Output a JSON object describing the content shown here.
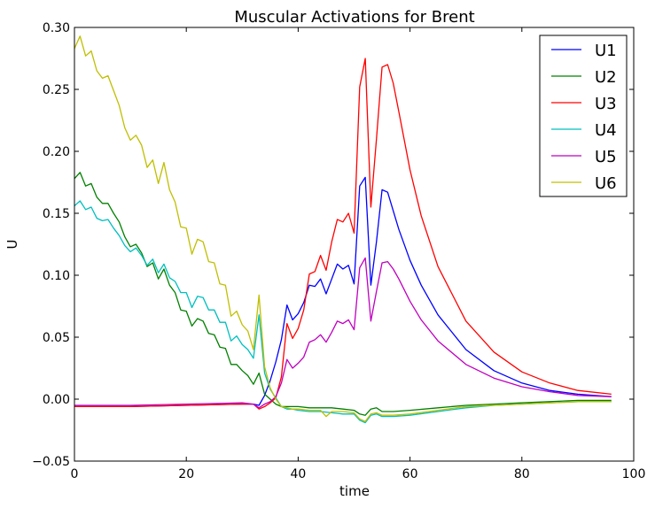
{
  "chart_data": {
    "type": "line",
    "title": "Muscular Activations for Brent",
    "xlabel": "time",
    "ylabel": "U",
    "xlim": [
      0,
      100
    ],
    "ylim": [
      -0.05,
      0.3
    ],
    "xticks": [
      0,
      20,
      40,
      60,
      80,
      100
    ],
    "xtick_labels": [
      "0",
      "20",
      "40",
      "60",
      "80",
      "100"
    ],
    "yticks": [
      -0.05,
      0.0,
      0.05,
      0.1,
      0.15,
      0.2,
      0.25,
      0.3
    ],
    "ytick_labels": [
      "−0.05",
      "0.00",
      "0.05",
      "0.10",
      "0.15",
      "0.20",
      "0.25",
      "0.30"
    ],
    "grid": false,
    "legend_position": "top-right",
    "series": [
      {
        "name": "U1",
        "color": "#0000ff",
        "points": [
          [
            0,
            -0.006
          ],
          [
            10,
            -0.006
          ],
          [
            20,
            -0.005
          ],
          [
            30,
            -0.004
          ],
          [
            32,
            -0.004
          ],
          [
            33,
            -0.005
          ],
          [
            34,
            0.003
          ],
          [
            35,
            0.015
          ],
          [
            36,
            0.03
          ],
          [
            37,
            0.048
          ],
          [
            38,
            0.076
          ],
          [
            39,
            0.064
          ],
          [
            40,
            0.069
          ],
          [
            41,
            0.078
          ],
          [
            42,
            0.092
          ],
          [
            43,
            0.091
          ],
          [
            44,
            0.097
          ],
          [
            45,
            0.085
          ],
          [
            46,
            0.097
          ],
          [
            47,
            0.109
          ],
          [
            48,
            0.105
          ],
          [
            49,
            0.108
          ],
          [
            50,
            0.093
          ],
          [
            51,
            0.172
          ],
          [
            52,
            0.179
          ],
          [
            53,
            0.092
          ],
          [
            54,
            0.127
          ],
          [
            55,
            0.169
          ],
          [
            56,
            0.167
          ],
          [
            57,
            0.152
          ],
          [
            58,
            0.137
          ],
          [
            60,
            0.112
          ],
          [
            62,
            0.092
          ],
          [
            65,
            0.068
          ],
          [
            70,
            0.04
          ],
          [
            75,
            0.023
          ],
          [
            80,
            0.013
          ],
          [
            85,
            0.007
          ],
          [
            90,
            0.004
          ],
          [
            96,
            0.002
          ]
        ]
      },
      {
        "name": "U2",
        "color": "#008000",
        "points": [
          [
            0,
            0.178
          ],
          [
            1,
            0.183
          ],
          [
            2,
            0.172
          ],
          [
            3,
            0.174
          ],
          [
            4,
            0.163
          ],
          [
            5,
            0.158
          ],
          [
            6,
            0.158
          ],
          [
            7,
            0.15
          ],
          [
            8,
            0.143
          ],
          [
            9,
            0.131
          ],
          [
            10,
            0.123
          ],
          [
            11,
            0.125
          ],
          [
            12,
            0.118
          ],
          [
            13,
            0.107
          ],
          [
            14,
            0.11
          ],
          [
            15,
            0.097
          ],
          [
            16,
            0.105
          ],
          [
            17,
            0.092
          ],
          [
            18,
            0.086
          ],
          [
            19,
            0.072
          ],
          [
            20,
            0.071
          ],
          [
            21,
            0.059
          ],
          [
            22,
            0.065
          ],
          [
            23,
            0.063
          ],
          [
            24,
            0.053
          ],
          [
            25,
            0.052
          ],
          [
            26,
            0.042
          ],
          [
            27,
            0.041
          ],
          [
            28,
            0.028
          ],
          [
            29,
            0.028
          ],
          [
            30,
            0.023
          ],
          [
            31,
            0.019
          ],
          [
            32,
            0.012
          ],
          [
            33,
            0.021
          ],
          [
            34,
            0.004
          ],
          [
            35,
            0.0
          ],
          [
            36,
            -0.004
          ],
          [
            37,
            -0.006
          ],
          [
            38,
            -0.006
          ],
          [
            40,
            -0.006
          ],
          [
            42,
            -0.007
          ],
          [
            44,
            -0.007
          ],
          [
            46,
            -0.007
          ],
          [
            48,
            -0.008
          ],
          [
            50,
            -0.009
          ],
          [
            51,
            -0.012
          ],
          [
            52,
            -0.013
          ],
          [
            53,
            -0.008
          ],
          [
            54,
            -0.007
          ],
          [
            55,
            -0.01
          ],
          [
            57,
            -0.01
          ],
          [
            60,
            -0.009
          ],
          [
            65,
            -0.007
          ],
          [
            70,
            -0.005
          ],
          [
            75,
            -0.004
          ],
          [
            80,
            -0.003
          ],
          [
            85,
            -0.002
          ],
          [
            90,
            -0.001
          ],
          [
            96,
            -0.001
          ]
        ]
      },
      {
        "name": "U3",
        "color": "#ff0000",
        "points": [
          [
            0,
            -0.006
          ],
          [
            10,
            -0.006
          ],
          [
            20,
            -0.005
          ],
          [
            30,
            -0.004
          ],
          [
            32,
            -0.004
          ],
          [
            33,
            -0.008
          ],
          [
            34,
            -0.006
          ],
          [
            35,
            -0.003
          ],
          [
            36,
            0.001
          ],
          [
            37,
            0.018
          ],
          [
            38,
            0.061
          ],
          [
            39,
            0.049
          ],
          [
            40,
            0.057
          ],
          [
            41,
            0.072
          ],
          [
            42,
            0.101
          ],
          [
            43,
            0.103
          ],
          [
            44,
            0.116
          ],
          [
            45,
            0.104
          ],
          [
            46,
            0.127
          ],
          [
            47,
            0.145
          ],
          [
            48,
            0.143
          ],
          [
            49,
            0.15
          ],
          [
            50,
            0.134
          ],
          [
            51,
            0.252
          ],
          [
            52,
            0.275
          ],
          [
            53,
            0.155
          ],
          [
            54,
            0.21
          ],
          [
            55,
            0.268
          ],
          [
            56,
            0.27
          ],
          [
            57,
            0.255
          ],
          [
            58,
            0.232
          ],
          [
            60,
            0.185
          ],
          [
            62,
            0.148
          ],
          [
            65,
            0.107
          ],
          [
            70,
            0.063
          ],
          [
            75,
            0.038
          ],
          [
            80,
            0.022
          ],
          [
            85,
            0.013
          ],
          [
            90,
            0.007
          ],
          [
            96,
            0.004
          ]
        ]
      },
      {
        "name": "U4",
        "color": "#00bfbf",
        "points": [
          [
            0,
            0.156
          ],
          [
            1,
            0.16
          ],
          [
            2,
            0.153
          ],
          [
            3,
            0.155
          ],
          [
            4,
            0.146
          ],
          [
            5,
            0.144
          ],
          [
            6,
            0.145
          ],
          [
            7,
            0.138
          ],
          [
            8,
            0.132
          ],
          [
            9,
            0.124
          ],
          [
            10,
            0.119
          ],
          [
            11,
            0.122
          ],
          [
            12,
            0.116
          ],
          [
            13,
            0.108
          ],
          [
            14,
            0.113
          ],
          [
            15,
            0.102
          ],
          [
            16,
            0.109
          ],
          [
            17,
            0.098
          ],
          [
            18,
            0.095
          ],
          [
            19,
            0.086
          ],
          [
            20,
            0.086
          ],
          [
            21,
            0.074
          ],
          [
            22,
            0.083
          ],
          [
            23,
            0.082
          ],
          [
            24,
            0.072
          ],
          [
            25,
            0.072
          ],
          [
            26,
            0.062
          ],
          [
            27,
            0.062
          ],
          [
            28,
            0.047
          ],
          [
            29,
            0.051
          ],
          [
            30,
            0.044
          ],
          [
            31,
            0.04
          ],
          [
            32,
            0.033
          ],
          [
            33,
            0.068
          ],
          [
            34,
            0.021
          ],
          [
            35,
            0.008
          ],
          [
            36,
            0.001
          ],
          [
            37,
            -0.006
          ],
          [
            38,
            -0.008
          ],
          [
            39,
            -0.008
          ],
          [
            40,
            -0.009
          ],
          [
            42,
            -0.01
          ],
          [
            44,
            -0.01
          ],
          [
            46,
            -0.011
          ],
          [
            48,
            -0.012
          ],
          [
            50,
            -0.012
          ],
          [
            51,
            -0.017
          ],
          [
            52,
            -0.019
          ],
          [
            53,
            -0.013
          ],
          [
            54,
            -0.012
          ],
          [
            55,
            -0.014
          ],
          [
            57,
            -0.014
          ],
          [
            60,
            -0.013
          ],
          [
            65,
            -0.01
          ],
          [
            70,
            -0.007
          ],
          [
            75,
            -0.005
          ],
          [
            80,
            -0.004
          ],
          [
            85,
            -0.003
          ],
          [
            90,
            -0.002
          ],
          [
            96,
            -0.002
          ]
        ]
      },
      {
        "name": "U5",
        "color": "#bf00bf",
        "points": [
          [
            0,
            -0.005
          ],
          [
            10,
            -0.005
          ],
          [
            20,
            -0.004
          ],
          [
            30,
            -0.003
          ],
          [
            32,
            -0.004
          ],
          [
            33,
            -0.007
          ],
          [
            34,
            -0.004
          ],
          [
            35,
            -0.002
          ],
          [
            36,
            0.002
          ],
          [
            37,
            0.013
          ],
          [
            38,
            0.032
          ],
          [
            39,
            0.025
          ],
          [
            40,
            0.029
          ],
          [
            41,
            0.034
          ],
          [
            42,
            0.046
          ],
          [
            43,
            0.048
          ],
          [
            44,
            0.052
          ],
          [
            45,
            0.046
          ],
          [
            46,
            0.054
          ],
          [
            47,
            0.063
          ],
          [
            48,
            0.061
          ],
          [
            49,
            0.064
          ],
          [
            50,
            0.056
          ],
          [
            51,
            0.106
          ],
          [
            52,
            0.114
          ],
          [
            53,
            0.063
          ],
          [
            54,
            0.087
          ],
          [
            55,
            0.11
          ],
          [
            56,
            0.111
          ],
          [
            57,
            0.105
          ],
          [
            58,
            0.097
          ],
          [
            60,
            0.079
          ],
          [
            62,
            0.064
          ],
          [
            65,
            0.047
          ],
          [
            70,
            0.028
          ],
          [
            75,
            0.017
          ],
          [
            80,
            0.01
          ],
          [
            85,
            0.006
          ],
          [
            90,
            0.003
          ],
          [
            96,
            0.002
          ]
        ]
      },
      {
        "name": "U6",
        "color": "#bfbf00",
        "points": [
          [
            0,
            0.283
          ],
          [
            1,
            0.293
          ],
          [
            2,
            0.277
          ],
          [
            3,
            0.281
          ],
          [
            4,
            0.265
          ],
          [
            5,
            0.259
          ],
          [
            6,
            0.261
          ],
          [
            7,
            0.249
          ],
          [
            8,
            0.237
          ],
          [
            9,
            0.219
          ],
          [
            10,
            0.209
          ],
          [
            11,
            0.213
          ],
          [
            12,
            0.205
          ],
          [
            13,
            0.187
          ],
          [
            14,
            0.193
          ],
          [
            15,
            0.174
          ],
          [
            16,
            0.191
          ],
          [
            17,
            0.169
          ],
          [
            18,
            0.159
          ],
          [
            19,
            0.139
          ],
          [
            20,
            0.138
          ],
          [
            21,
            0.117
          ],
          [
            22,
            0.129
          ],
          [
            23,
            0.127
          ],
          [
            24,
            0.111
          ],
          [
            25,
            0.11
          ],
          [
            26,
            0.093
          ],
          [
            27,
            0.092
          ],
          [
            28,
            0.067
          ],
          [
            29,
            0.071
          ],
          [
            30,
            0.06
          ],
          [
            31,
            0.055
          ],
          [
            32,
            0.04
          ],
          [
            33,
            0.084
          ],
          [
            34,
            0.026
          ],
          [
            35,
            0.009
          ],
          [
            36,
            0.0
          ],
          [
            37,
            -0.006
          ],
          [
            38,
            -0.007
          ],
          [
            39,
            -0.008
          ],
          [
            40,
            -0.008
          ],
          [
            42,
            -0.009
          ],
          [
            44,
            -0.009
          ],
          [
            45,
            -0.014
          ],
          [
            46,
            -0.01
          ],
          [
            48,
            -0.01
          ],
          [
            50,
            -0.011
          ],
          [
            51,
            -0.016
          ],
          [
            52,
            -0.018
          ],
          [
            53,
            -0.012
          ],
          [
            54,
            -0.011
          ],
          [
            55,
            -0.013
          ],
          [
            57,
            -0.013
          ],
          [
            60,
            -0.012
          ],
          [
            65,
            -0.009
          ],
          [
            70,
            -0.006
          ],
          [
            75,
            -0.005
          ],
          [
            80,
            -0.004
          ],
          [
            85,
            -0.003
          ],
          [
            90,
            -0.002
          ],
          [
            96,
            -0.002
          ]
        ]
      }
    ]
  }
}
